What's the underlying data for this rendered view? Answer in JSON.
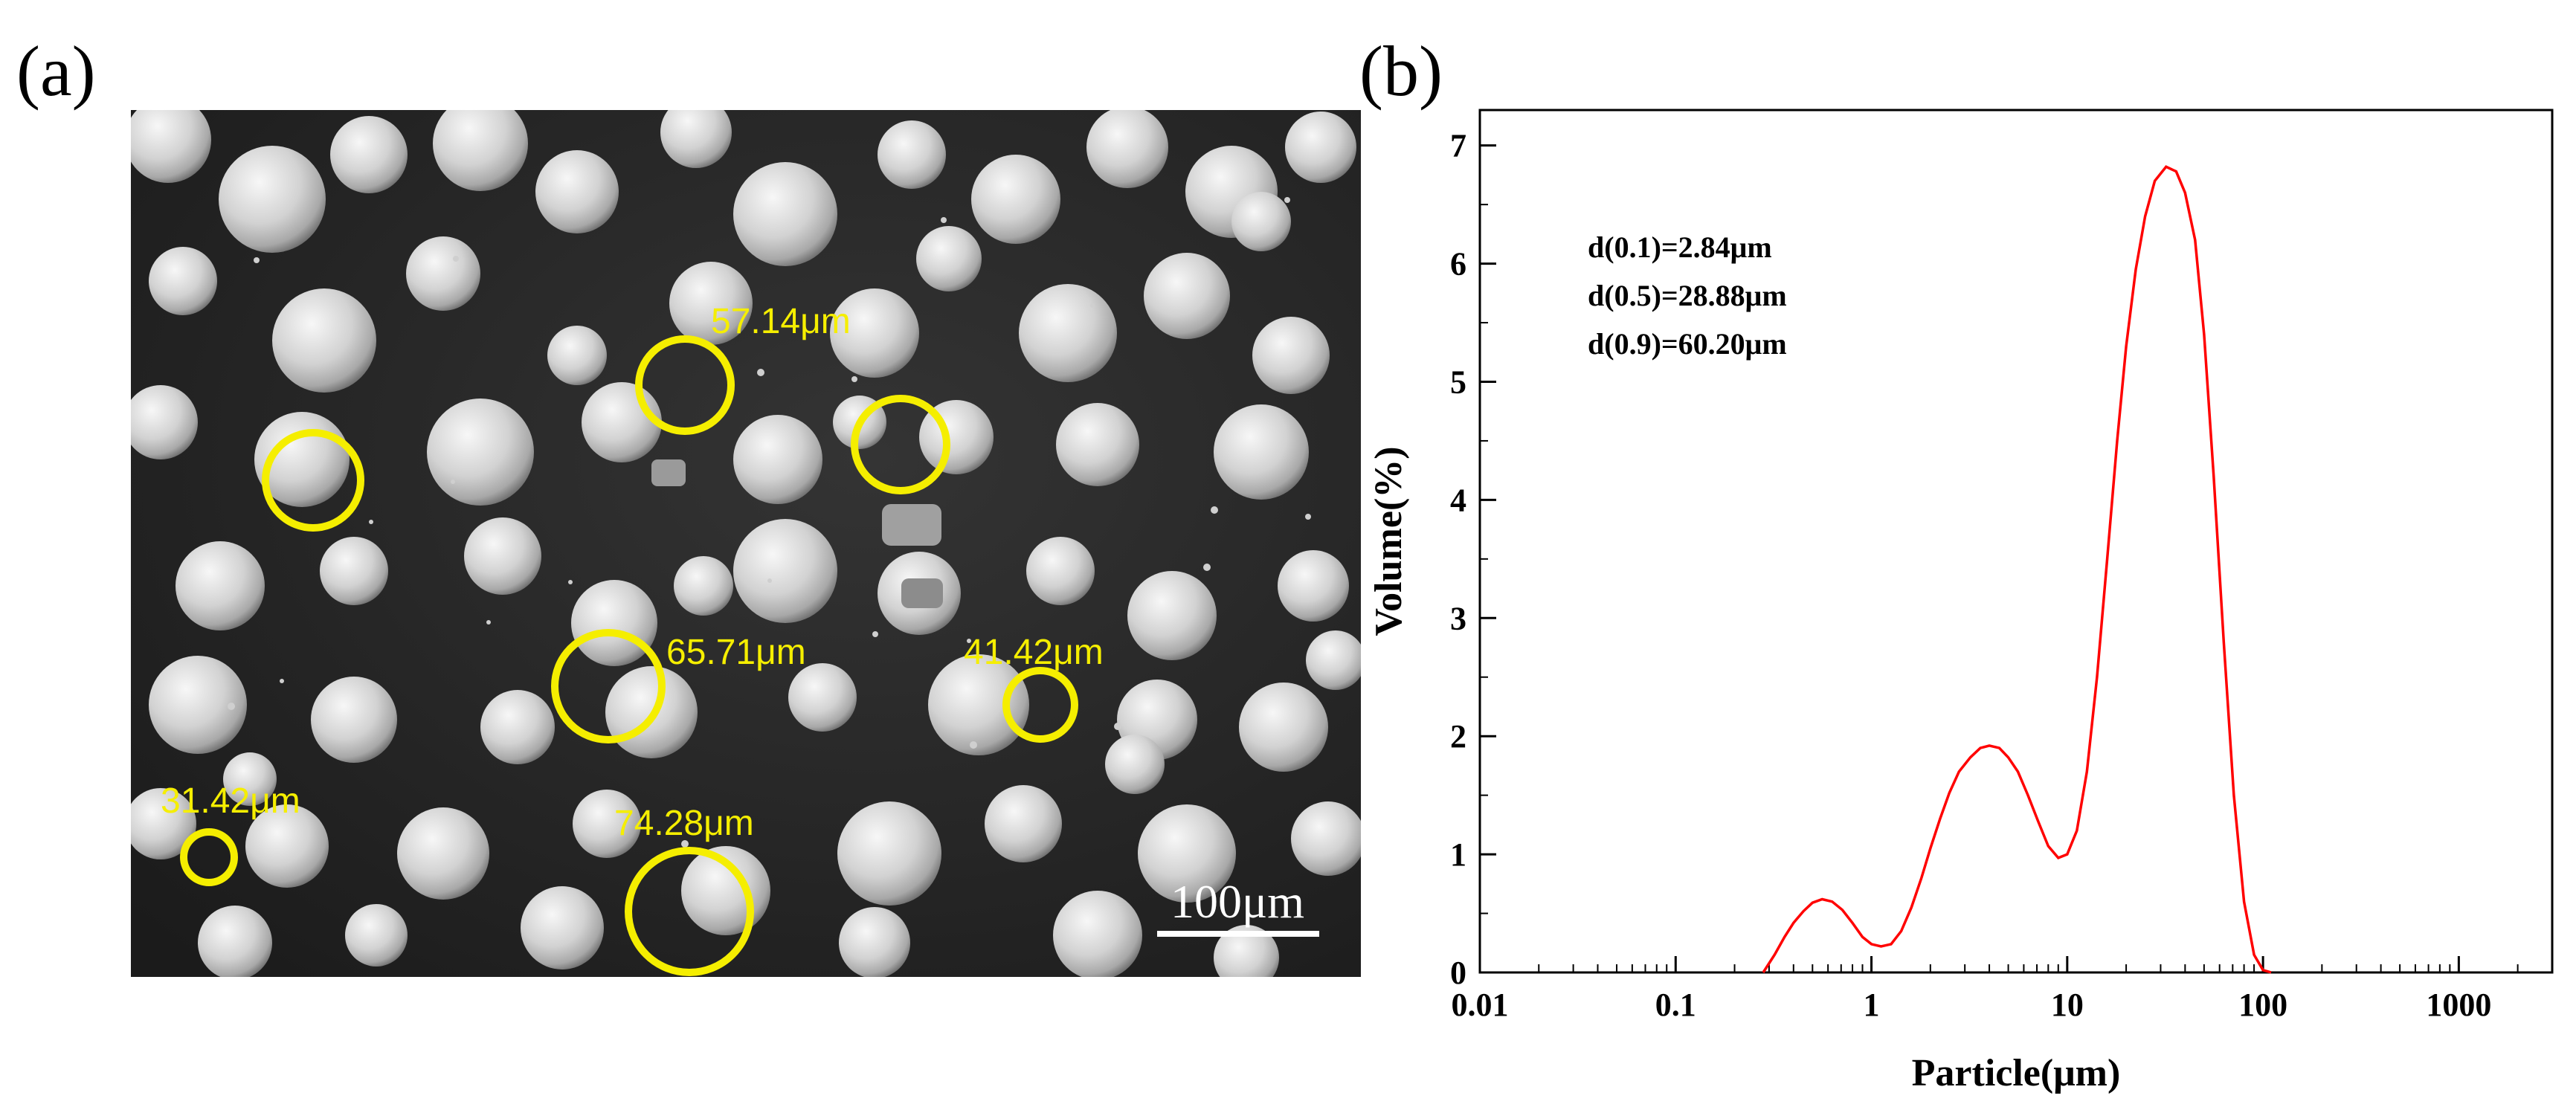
{
  "panels": {
    "a_label": "(a)",
    "b_label": "(b)"
  },
  "sem_image": {
    "scale_bar_label": "100μm",
    "annotation_color": "#f5ee00",
    "annotations": [
      {
        "label": "57.14μm"
      },
      {
        "label": "65.71μm"
      },
      {
        "label": "41.42μm"
      },
      {
        "label": "31.42μm"
      },
      {
        "label": "74.28μm"
      }
    ]
  },
  "chart_data": {
    "type": "line",
    "xlabel": "Particle(μm)",
    "ylabel": "Volume(%)",
    "xscale": "log",
    "xlim": [
      0.01,
      3000
    ],
    "ylim": [
      0,
      7.3
    ],
    "xticks": [
      0.01,
      0.1,
      1,
      10,
      100,
      1000
    ],
    "xtick_labels": [
      "0.01",
      "0.1",
      "1",
      "10",
      "100",
      "1000"
    ],
    "yticks": [
      0,
      1,
      2,
      3,
      4,
      5,
      6,
      7
    ],
    "ytick_labels": [
      "0",
      "1",
      "2",
      "3",
      "4",
      "5",
      "6",
      "7"
    ],
    "line_color": "#ff0000",
    "grid": false,
    "annotations": [
      "d(0.1)=2.84μm",
      "d(0.5)=28.88μm",
      "d(0.9)=60.20μm"
    ],
    "series": [
      {
        "x": [
          0.28,
          0.32,
          0.36,
          0.4,
          0.45,
          0.5,
          0.56,
          0.63,
          0.71,
          0.8,
          0.9,
          1.0,
          1.12,
          1.26,
          1.42,
          1.6,
          1.8,
          2.0,
          2.24,
          2.5,
          2.8,
          3.2,
          3.6,
          4.0,
          4.5,
          5.0,
          5.6,
          6.3,
          7.1,
          8.0,
          9.0,
          10.0,
          11.2,
          12.6,
          14.2,
          16.0,
          18.0,
          20.0,
          22.4,
          25.0,
          28.0,
          32.0,
          36.0,
          40.0,
          45.0,
          50.0,
          56.0,
          63.0,
          71.0,
          80.0,
          90.0,
          100.0,
          110.0
        ],
        "y": [
          0.0,
          0.15,
          0.3,
          0.42,
          0.52,
          0.59,
          0.62,
          0.6,
          0.53,
          0.42,
          0.3,
          0.24,
          0.22,
          0.24,
          0.35,
          0.55,
          0.8,
          1.05,
          1.3,
          1.52,
          1.7,
          1.82,
          1.9,
          1.92,
          1.9,
          1.82,
          1.7,
          1.5,
          1.28,
          1.07,
          0.97,
          1.0,
          1.2,
          1.7,
          2.5,
          3.5,
          4.5,
          5.3,
          5.95,
          6.4,
          6.7,
          6.82,
          6.78,
          6.6,
          6.2,
          5.4,
          4.2,
          2.8,
          1.5,
          0.6,
          0.15,
          0.02,
          0.0
        ]
      }
    ]
  }
}
